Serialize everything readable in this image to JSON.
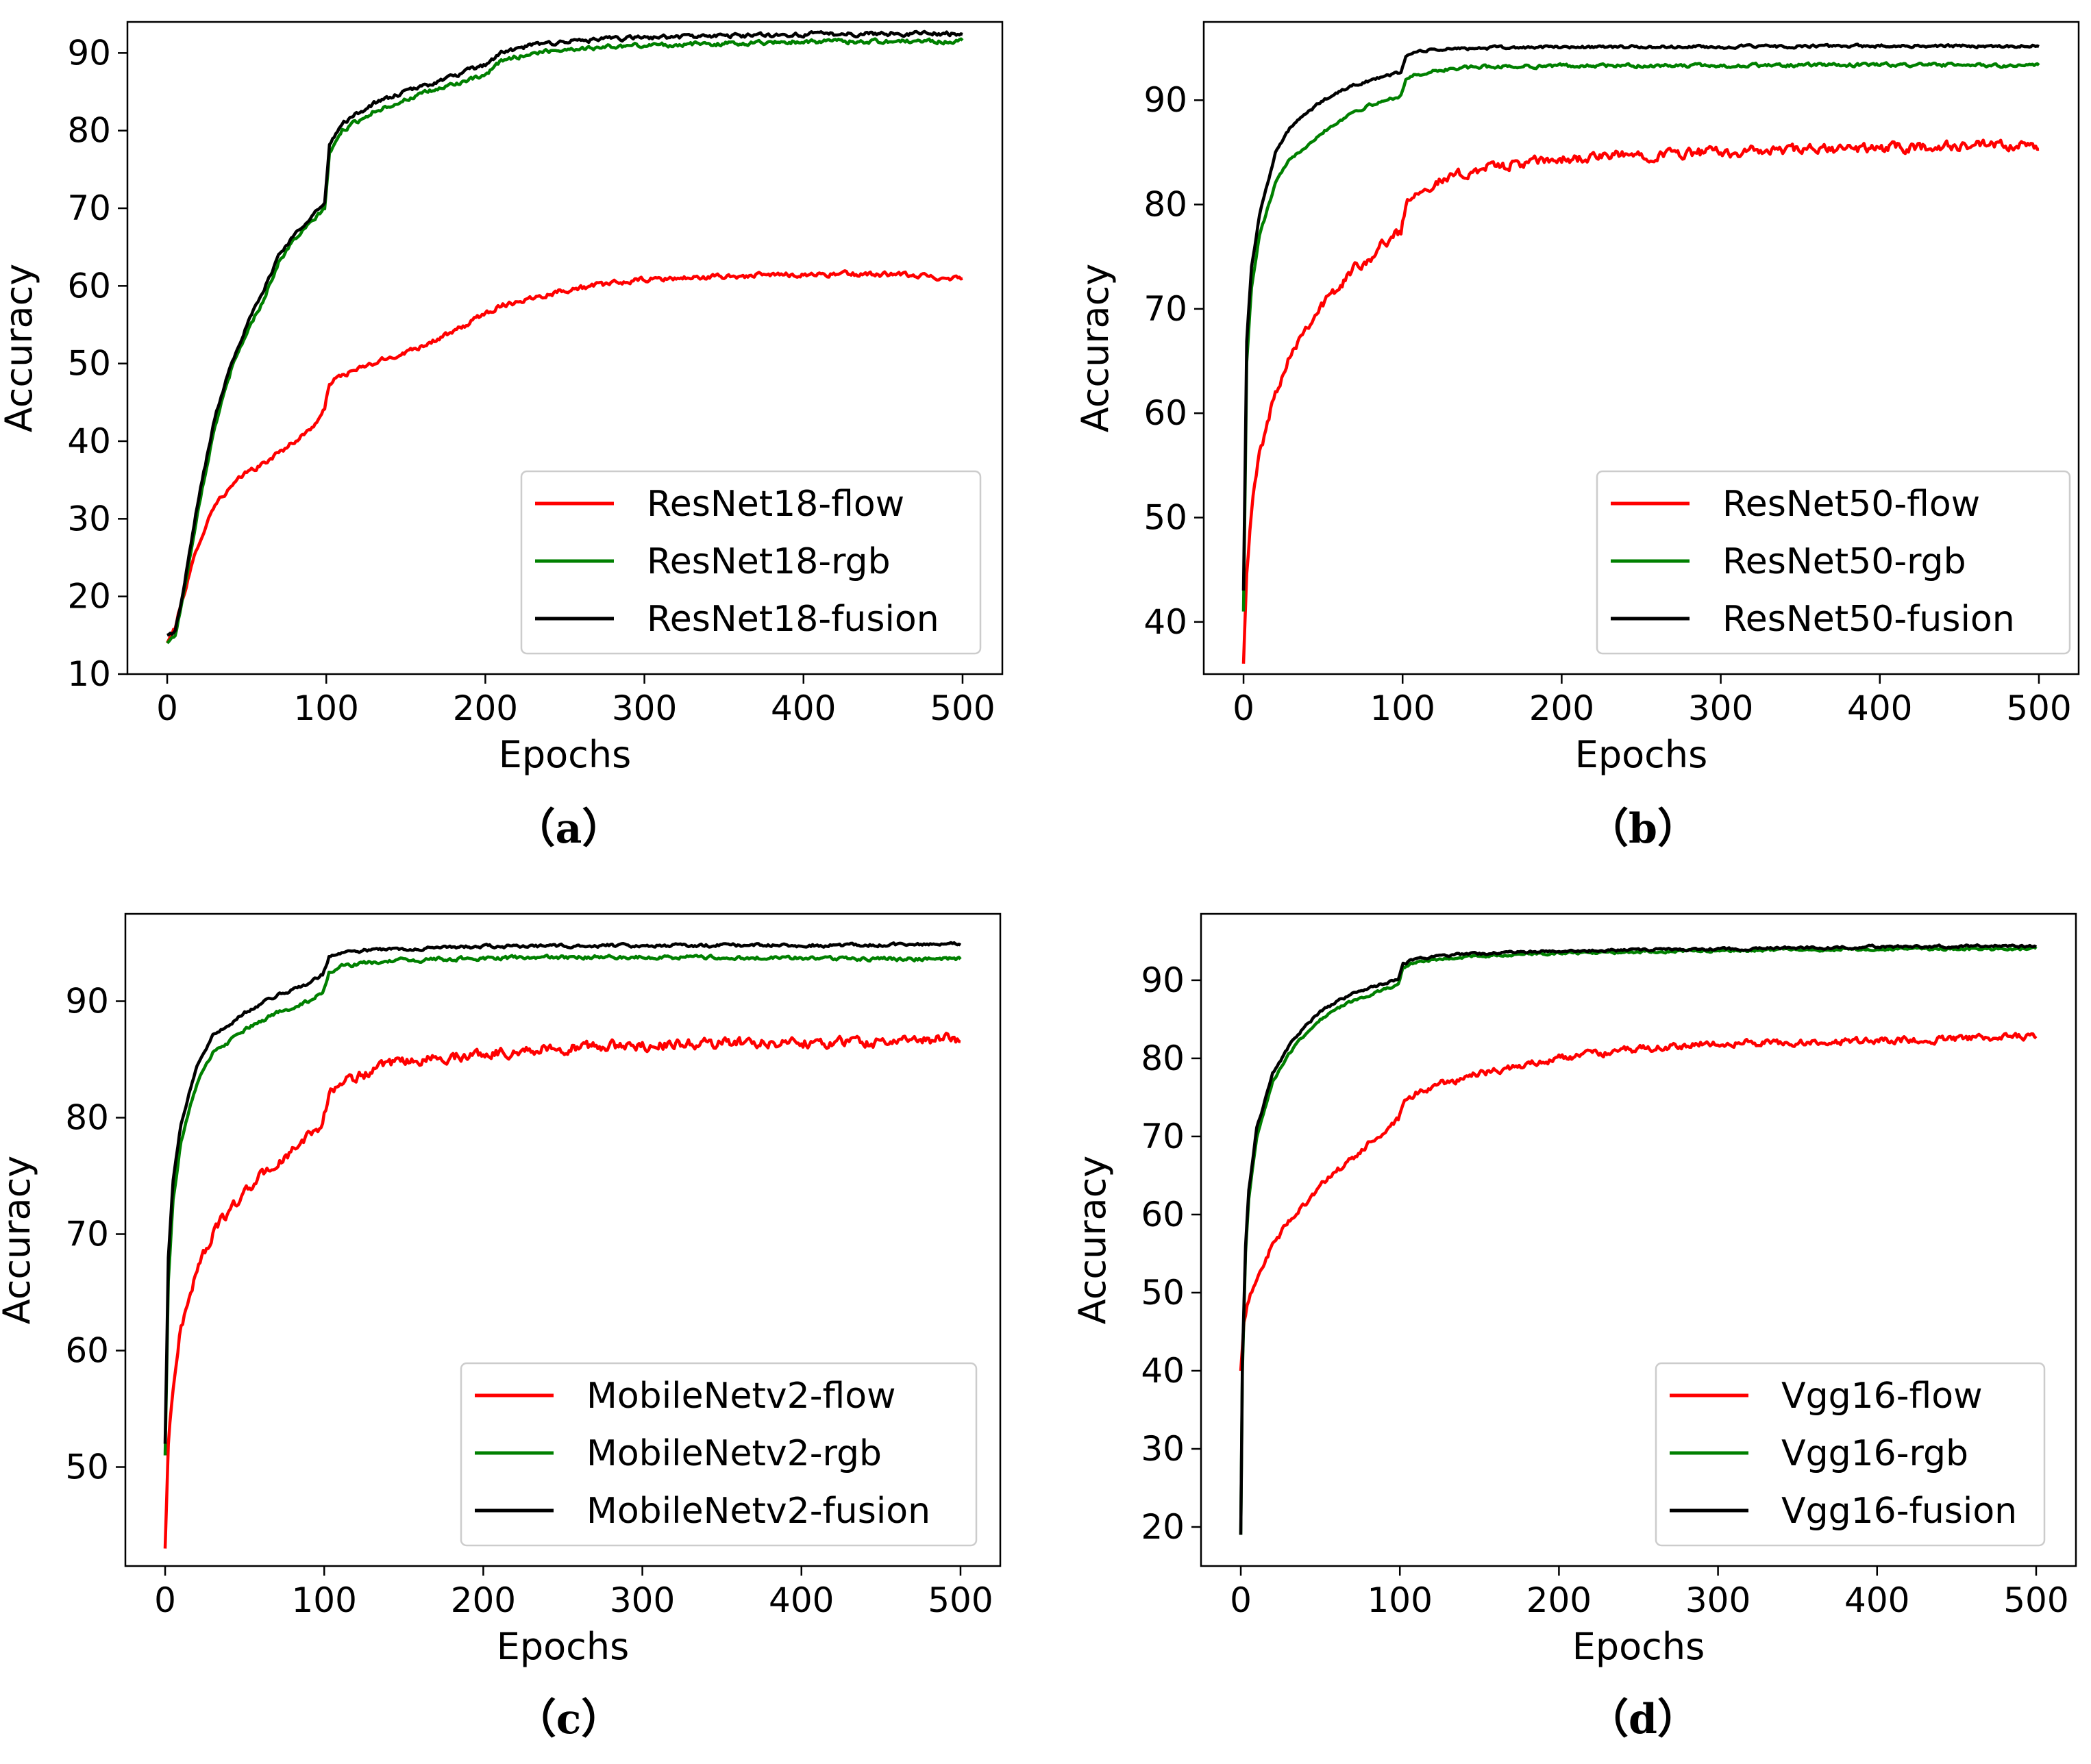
{
  "figure": {
    "description_labels": [
      "（a）",
      "（b）",
      "（c）",
      "（d）"
    ]
  },
  "colors": {
    "flow": "#ff0000",
    "rgb": "#008000",
    "fusion": "#000000",
    "axes": "#000000",
    "legend_border": "#cccccc"
  },
  "chart_data": [
    {
      "type": "line",
      "panel_label": "（a）",
      "xlabel": "Epochs",
      "ylabel": "Accuracy",
      "xlim": [
        -25,
        525
      ],
      "ylim": [
        10,
        94
      ],
      "xticks": [
        0,
        100,
        200,
        300,
        400,
        500
      ],
      "yticks": [
        10,
        20,
        30,
        40,
        50,
        60,
        70,
        80,
        90
      ],
      "legend_position": "lower-right",
      "series": [
        {
          "name": "ResNet18-flow",
          "color": "#ff0000",
          "noise": 0.6,
          "x": [
            0,
            5,
            10,
            20,
            30,
            40,
            50,
            60,
            70,
            80,
            90,
            99,
            102,
            110,
            130,
            150,
            180,
            200,
            210,
            230,
            250,
            280,
            300,
            350,
            400,
            450,
            500
          ],
          "y": [
            14,
            16,
            20,
            27,
            32,
            34,
            36,
            37,
            38.5,
            40,
            41.5,
            44,
            47.5,
            48.5,
            50,
            51.5,
            54,
            56.5,
            57.5,
            58.5,
            59.5,
            60.3,
            60.8,
            61.2,
            61.5,
            61.5,
            61
          ]
        },
        {
          "name": "ResNet18-rgb",
          "color": "#008000",
          "noise": 0.5,
          "x": [
            0,
            5,
            10,
            20,
            30,
            40,
            50,
            60,
            70,
            80,
            90,
            99,
            102,
            110,
            130,
            150,
            180,
            200,
            210,
            230,
            250,
            300,
            350,
            400,
            450,
            500
          ],
          "y": [
            14,
            15,
            20,
            32,
            42,
            49,
            54,
            58,
            63,
            66,
            68,
            70,
            77,
            80,
            82.5,
            84,
            86,
            87,
            89,
            90,
            90.5,
            91,
            91.2,
            91.5,
            91.5,
            91.5
          ]
        },
        {
          "name": "ResNet18-fusion",
          "color": "#000000",
          "noise": 0.5,
          "x": [
            0,
            5,
            10,
            20,
            30,
            40,
            50,
            60,
            70,
            80,
            90,
            99,
            102,
            110,
            130,
            150,
            180,
            200,
            210,
            230,
            250,
            300,
            350,
            400,
            450,
            500
          ],
          "y": [
            15,
            15.5,
            20.5,
            33,
            43,
            50,
            55,
            59,
            64,
            66.5,
            69,
            70.5,
            78,
            81,
            83.5,
            85,
            87,
            88.5,
            90,
            91,
            91.5,
            92,
            92.2,
            92.4,
            92.5,
            92.5
          ]
        }
      ]
    },
    {
      "type": "line",
      "panel_label": "（b）",
      "xlabel": "Epochs",
      "ylabel": "Accuracy",
      "xlim": [
        -25,
        525
      ],
      "ylim": [
        35,
        97.5
      ],
      "xticks": [
        0,
        100,
        200,
        300,
        400,
        500
      ],
      "yticks": [
        40,
        50,
        60,
        70,
        80,
        90
      ],
      "legend_position": "lower-right",
      "series": [
        {
          "name": "ResNet50-flow",
          "color": "#ff0000",
          "noise": 0.9,
          "x": [
            0,
            2,
            5,
            10,
            20,
            30,
            40,
            50,
            60,
            70,
            80,
            90,
            99,
            103,
            110,
            130,
            150,
            200,
            250,
            300,
            350,
            400,
            450,
            500
          ],
          "y": [
            36,
            45,
            51,
            56,
            62,
            66,
            68.5,
            70.5,
            72,
            74,
            75,
            76.5,
            77.5,
            80.5,
            81.5,
            82.5,
            83.5,
            84.3,
            84.8,
            85,
            85.2,
            85.4,
            85.6,
            85.5
          ]
        },
        {
          "name": "ResNet50-rgb",
          "color": "#008000",
          "noise": 0.3,
          "x": [
            0,
            2,
            5,
            10,
            20,
            30,
            50,
            70,
            90,
            99,
            102,
            110,
            130,
            150,
            200,
            300,
            400,
            500
          ],
          "y": [
            41,
            65,
            72,
            77,
            82,
            84.5,
            87,
            89,
            90,
            90.5,
            92,
            92.5,
            93,
            93.2,
            93.3,
            93.3,
            93.4,
            93.3
          ]
        },
        {
          "name": "ResNet50-fusion",
          "color": "#000000",
          "noise": 0.25,
          "x": [
            0,
            2,
            5,
            10,
            20,
            30,
            50,
            70,
            90,
            99,
            102,
            110,
            130,
            150,
            200,
            300,
            400,
            500
          ],
          "y": [
            43,
            67,
            74,
            79,
            85,
            87.5,
            90,
            91.5,
            92.3,
            92.7,
            94.2,
            94.7,
            94.9,
            95,
            95.1,
            95.1,
            95.2,
            95.2
          ]
        }
      ]
    },
    {
      "type": "line",
      "panel_label": "（c）",
      "xlabel": "Epochs",
      "ylabel": "Accuracy",
      "xlim": [
        -25,
        525
      ],
      "ylim": [
        41.5,
        97.5
      ],
      "xticks": [
        0,
        100,
        200,
        300,
        400,
        500
      ],
      "yticks": [
        50,
        60,
        70,
        80,
        90
      ],
      "legend_position": "lower-right",
      "series": [
        {
          "name": "MobileNetv2-flow",
          "color": "#ff0000",
          "noise": 0.8,
          "x": [
            0,
            2,
            5,
            10,
            20,
            30,
            40,
            50,
            60,
            70,
            80,
            90,
            99,
            103,
            110,
            130,
            150,
            200,
            250,
            300,
            350,
            400,
            450,
            500
          ],
          "y": [
            43,
            52,
            57,
            62,
            67,
            70,
            72,
            73.5,
            75,
            76,
            77,
            78.5,
            79.5,
            82,
            83,
            84,
            84.8,
            85.5,
            86,
            86.2,
            86.4,
            86.5,
            86.5,
            86.8
          ]
        },
        {
          "name": "MobileNetv2-rgb",
          "color": "#008000",
          "noise": 0.3,
          "x": [
            0,
            2,
            5,
            10,
            20,
            30,
            50,
            70,
            90,
            99,
            103,
            110,
            130,
            150,
            200,
            300,
            400,
            500
          ],
          "y": [
            51,
            66,
            73,
            78,
            83,
            85.5,
            87.5,
            89,
            90,
            90.8,
            92.5,
            93,
            93.3,
            93.5,
            93.7,
            93.8,
            93.7,
            93.6
          ]
        },
        {
          "name": "MobileNetv2-fusion",
          "color": "#000000",
          "noise": 0.25,
          "x": [
            0,
            2,
            5,
            10,
            20,
            30,
            50,
            70,
            90,
            99,
            103,
            110,
            130,
            150,
            200,
            300,
            400,
            500
          ],
          "y": [
            52,
            68,
            74.5,
            79.5,
            84.5,
            87,
            89,
            90.5,
            91.5,
            92.3,
            93.8,
            94.2,
            94.4,
            94.5,
            94.7,
            94.8,
            94.8,
            94.9
          ]
        }
      ]
    },
    {
      "type": "line",
      "panel_label": "（d）",
      "xlabel": "Epochs",
      "ylabel": "Accuracy",
      "xlim": [
        -25,
        525
      ],
      "ylim": [
        15,
        98.5
      ],
      "xticks": [
        0,
        100,
        200,
        300,
        400,
        500
      ],
      "yticks": [
        20,
        30,
        40,
        50,
        60,
        70,
        80,
        90
      ],
      "legend_position": "lower-right",
      "series": [
        {
          "name": "Vgg16-flow",
          "color": "#ff0000",
          "noise": 0.8,
          "x": [
            0,
            2,
            5,
            10,
            20,
            30,
            40,
            50,
            60,
            70,
            80,
            90,
            99,
            103,
            110,
            130,
            150,
            200,
            250,
            300,
            350,
            400,
            450,
            500
          ],
          "y": [
            40,
            46,
            49,
            52,
            56,
            59,
            61.5,
            63.5,
            65.5,
            67,
            69,
            70.5,
            72,
            74,
            75.5,
            77,
            78,
            80,
            81.2,
            82,
            82,
            82.3,
            82.5,
            82.8
          ]
        },
        {
          "name": "Vgg16-rgb",
          "color": "#008000",
          "noise": 0.3,
          "x": [
            0,
            1,
            3,
            5,
            10,
            20,
            30,
            40,
            50,
            60,
            70,
            80,
            90,
            99,
            102,
            110,
            130,
            150,
            200,
            300,
            400,
            500
          ],
          "y": [
            19,
            40,
            55,
            62,
            70,
            77,
            80.5,
            83,
            85,
            86.3,
            87.3,
            88,
            88.8,
            89.3,
            91.5,
            92.3,
            92.8,
            93.1,
            93.5,
            93.8,
            94,
            94
          ]
        },
        {
          "name": "Vgg16-fusion",
          "color": "#000000",
          "noise": 0.3,
          "x": [
            0,
            1,
            3,
            5,
            10,
            20,
            30,
            40,
            50,
            60,
            70,
            80,
            90,
            99,
            102,
            110,
            130,
            150,
            200,
            300,
            400,
            500
          ],
          "y": [
            19,
            41,
            56,
            63,
            71,
            78,
            81.5,
            84,
            86,
            87.2,
            88.2,
            89,
            89.6,
            90,
            92,
            92.8,
            93.2,
            93.4,
            93.8,
            94,
            94.3,
            94.4
          ]
        }
      ]
    }
  ]
}
